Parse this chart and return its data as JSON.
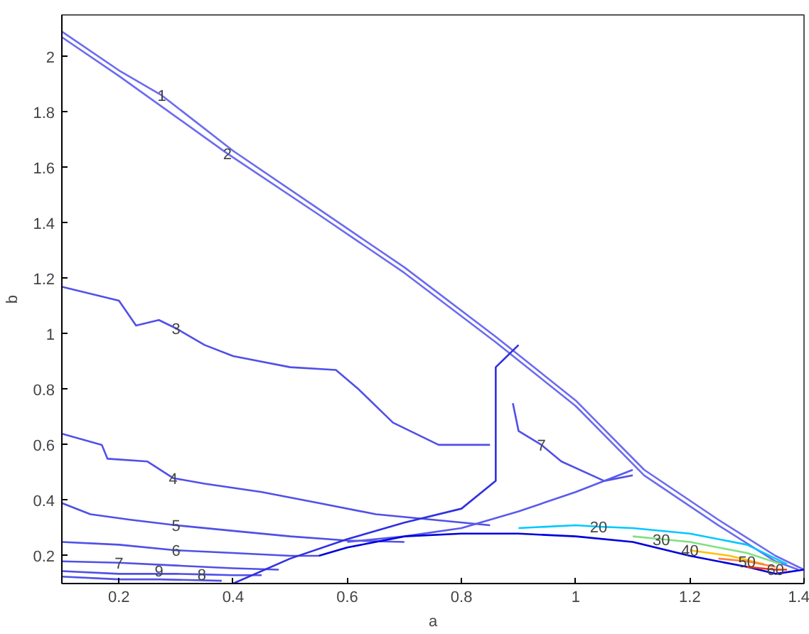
{
  "chart_data": {
    "type": "line",
    "xlabel": "a",
    "ylabel": "b",
    "xlim": [
      0.1,
      1.4
    ],
    "ylim": [
      0.1,
      2.15
    ],
    "xticks": [
      0.2,
      0.4,
      0.6,
      0.8,
      1,
      1.2,
      1.4
    ],
    "yticks": [
      0.2,
      0.4,
      0.6,
      0.8,
      1,
      1.2,
      1.4,
      1.6,
      1.8,
      2
    ],
    "grid": false,
    "marker": "none",
    "line_style": "solid",
    "series": [
      {
        "color": "#6b6bf0",
        "x": [
          0.1,
          0.2,
          0.275,
          0.4,
          0.55,
          0.7,
          0.86,
          1.0,
          1.12,
          1.25,
          1.35,
          1.4
        ],
        "values": [
          2.09,
          1.95,
          1.86,
          1.66,
          1.45,
          1.24,
          0.99,
          0.76,
          0.51,
          0.33,
          0.2,
          0.15
        ]
      },
      {
        "color": "#6b6bf0",
        "x": [
          0.1,
          0.2,
          0.39,
          0.55,
          0.7,
          0.86,
          1.0,
          1.12,
          1.25,
          1.35,
          1.39
        ],
        "values": [
          2.07,
          1.93,
          1.65,
          1.43,
          1.22,
          0.97,
          0.74,
          0.49,
          0.31,
          0.18,
          0.15
        ]
      },
      {
        "color": "#5050e8",
        "x": [
          0.1,
          0.2,
          0.23,
          0.27,
          0.3,
          0.35,
          0.4,
          0.5,
          0.58,
          0.62,
          0.68,
          0.76,
          0.85
        ],
        "values": [
          1.17,
          1.12,
          1.03,
          1.05,
          1.02,
          0.96,
          0.92,
          0.88,
          0.87,
          0.8,
          0.68,
          0.6,
          0.6
        ]
      },
      {
        "color": "#5050e8",
        "x": [
          0.89,
          0.9,
          0.94,
          0.975,
          1.05,
          1.1
        ],
        "values": [
          0.75,
          0.65,
          0.6,
          0.54,
          0.47,
          0.49
        ]
      },
      {
        "color": "#5050e8",
        "x": [
          0.1,
          0.17,
          0.18,
          0.25,
          0.295,
          0.35,
          0.45,
          0.55,
          0.65,
          0.75,
          0.85
        ],
        "values": [
          0.64,
          0.6,
          0.55,
          0.54,
          0.48,
          0.46,
          0.43,
          0.39,
          0.35,
          0.33,
          0.31
        ]
      },
      {
        "color": "#5050e8",
        "x": [
          0.1,
          0.15,
          0.22,
          0.3,
          0.4,
          0.5,
          0.6,
          0.7
        ],
        "values": [
          0.39,
          0.35,
          0.33,
          0.31,
          0.29,
          0.27,
          0.255,
          0.25
        ]
      },
      {
        "color": "#5050e8",
        "x": [
          0.1,
          0.2,
          0.3,
          0.4,
          0.5,
          0.55
        ],
        "values": [
          0.25,
          0.24,
          0.22,
          0.21,
          0.2,
          0.2
        ]
      },
      {
        "color": "#5050e8",
        "x": [
          0.1,
          0.2,
          0.3,
          0.4,
          0.48
        ],
        "values": [
          0.18,
          0.175,
          0.165,
          0.155,
          0.15
        ]
      },
      {
        "color": "#5050e8",
        "x": [
          0.1,
          0.2,
          0.3,
          0.345,
          0.4,
          0.45
        ],
        "values": [
          0.145,
          0.135,
          0.135,
          0.133,
          0.13,
          0.13
        ]
      },
      {
        "color": "#5050e8",
        "x": [
          0.1,
          0.2,
          0.27,
          0.38
        ],
        "values": [
          0.125,
          0.115,
          0.115,
          0.11
        ]
      },
      {
        "color": "#3030e0",
        "x": [
          0.4,
          0.5,
          0.6,
          0.7,
          0.8,
          0.86,
          0.86,
          0.9
        ],
        "values": [
          0.1,
          0.19,
          0.26,
          0.32,
          0.37,
          0.47,
          0.88,
          0.96
        ]
      },
      {
        "color": "#5a5aee",
        "x": [
          0.6,
          0.7,
          0.8,
          0.9,
          1.0,
          1.1
        ],
        "values": [
          0.25,
          0.27,
          0.3,
          0.36,
          0.43,
          0.51
        ]
      },
      {
        "color": "#0000dd",
        "x": [
          0.55,
          0.6,
          0.7,
          0.8,
          0.9,
          1.0,
          1.1,
          1.2,
          1.3,
          1.35,
          1.4
        ],
        "values": [
          0.2,
          0.23,
          0.27,
          0.28,
          0.28,
          0.27,
          0.25,
          0.2,
          0.16,
          0.135,
          0.15
        ]
      },
      {
        "color": "#00c8ff",
        "x": [
          0.9,
          1.0,
          1.04,
          1.1,
          1.2,
          1.3,
          1.37
        ],
        "values": [
          0.3,
          0.31,
          0.305,
          0.3,
          0.28,
          0.24,
          0.17
        ]
      },
      {
        "color": "#80e080",
        "x": [
          1.1,
          1.15,
          1.2,
          1.3,
          1.36
        ],
        "values": [
          0.27,
          0.26,
          0.25,
          0.21,
          0.17
        ]
      },
      {
        "color": "#ffc000",
        "x": [
          1.2,
          1.27,
          1.33
        ],
        "values": [
          0.22,
          0.2,
          0.17
        ]
      },
      {
        "color": "#ff8040",
        "x": [
          1.25,
          1.3,
          1.35
        ],
        "values": [
          0.19,
          0.18,
          0.16
        ]
      },
      {
        "color": "#ff3000",
        "x": [
          1.3,
          1.35,
          1.37
        ],
        "values": [
          0.16,
          0.15,
          0.15
        ]
      }
    ],
    "annotations": [
      {
        "text": "1",
        "x": 0.275,
        "y": 1.86
      },
      {
        "text": "2",
        "x": 0.39,
        "y": 1.65
      },
      {
        "text": "3",
        "x": 0.3,
        "y": 1.02
      },
      {
        "text": "4",
        "x": 0.295,
        "y": 0.48
      },
      {
        "text": "5",
        "x": 0.3,
        "y": 0.31
      },
      {
        "text": "6",
        "x": 0.3,
        "y": 0.22
      },
      {
        "text": "7",
        "x": 0.2,
        "y": 0.175
      },
      {
        "text": "8",
        "x": 0.345,
        "y": 0.133
      },
      {
        "text": "9",
        "x": 0.27,
        "y": 0.115
      },
      {
        "text": "7",
        "x": 0.94,
        "y": 0.6
      },
      {
        "text": "20",
        "x": 1.04,
        "y": 0.305
      },
      {
        "text": "30",
        "x": 1.15,
        "y": 0.26
      },
      {
        "text": "40",
        "x": 1.2,
        "y": 0.22
      },
      {
        "text": "50",
        "x": 1.3,
        "y": 0.18
      },
      {
        "text": "60",
        "x": 1.35,
        "y": 0.15
      }
    ]
  }
}
